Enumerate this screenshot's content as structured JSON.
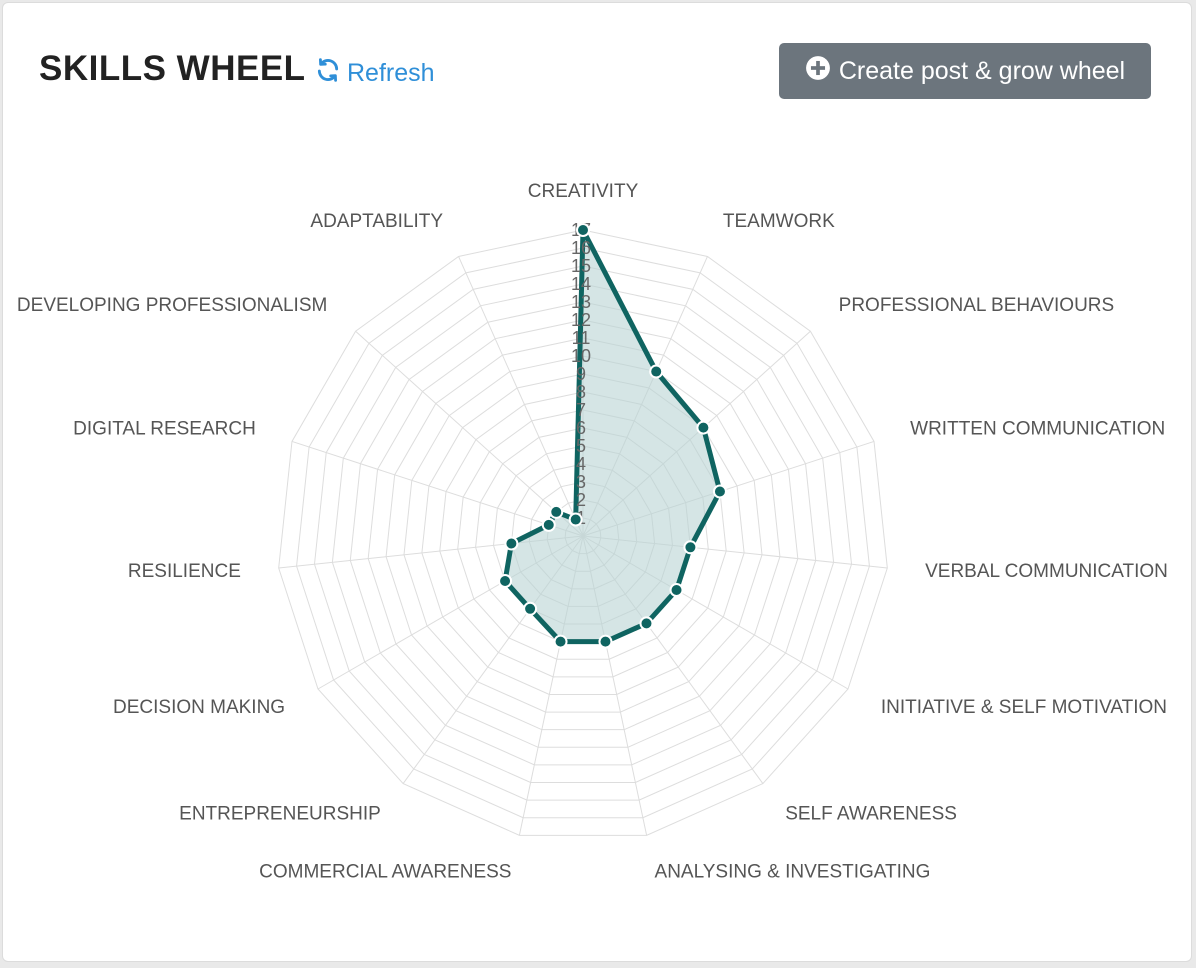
{
  "header": {
    "title": "SKILLS WHEEL",
    "refresh_label": "Refresh",
    "create_label": "Create post & grow wheel"
  },
  "icons": {
    "refresh": "refresh-icon",
    "create": "plus-circle-icon"
  },
  "colors": {
    "accent": "#2f8fd8",
    "button": "#6c757d",
    "series_line": "#0f6461",
    "series_fill": "#b9d4d3",
    "grid": "#dddddd"
  },
  "chart_data": {
    "type": "radar",
    "max": 17,
    "ticks": [
      "1",
      "2",
      "3",
      "4",
      "5",
      "6",
      "7",
      "8",
      "9",
      "10",
      "11",
      "12",
      "13",
      "14",
      "15",
      "16",
      "17"
    ],
    "categories": [
      "CREATIVITY",
      "TEAMWORK",
      "PROFESSIONAL BEHAVIOURS",
      "WRITTEN COMMUNICATION",
      "VERBAL COMMUNICATION",
      "INITIATIVE & SELF MOTIVATION",
      "SELF AWARENESS",
      "ANALYSING & INVESTIGATING",
      "COMMERCIAL AWARENESS",
      "ENTREPRENEURSHIP",
      "DECISION MAKING",
      "RESILIENCE",
      "DIGITAL RESEARCH",
      "DEVELOPING PROFESSIONALISM",
      "ADAPTABILITY"
    ],
    "values": [
      17,
      10,
      9,
      8,
      6,
      6,
      6,
      6,
      6,
      5,
      5,
      4,
      2,
      2,
      1
    ]
  }
}
